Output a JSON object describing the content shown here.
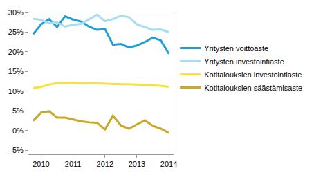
{
  "chart_data": {
    "type": "line",
    "categories": [
      null,
      "2010",
      null,
      null,
      null,
      "2011",
      null,
      null,
      null,
      "2012",
      null,
      null,
      null,
      "2013",
      null,
      null,
      null,
      "2014"
    ],
    "series": [
      {
        "name": "Yritysten voittoaste",
        "color": "#1f9fd8",
        "values": [
          24.5,
          27.0,
          28.3,
          26.3,
          29.0,
          28.2,
          27.7,
          26.4,
          25.6,
          25.8,
          21.8,
          22.0,
          21.1,
          21.6,
          22.5,
          23.6,
          22.9,
          19.5
        ]
      },
      {
        "name": "Yritysten investointiaste",
        "color": "#a6dcf4",
        "values": [
          28.4,
          28.1,
          27.3,
          27.5,
          26.4,
          26.9,
          27.1,
          28.2,
          29.4,
          27.8,
          28.3,
          29.2,
          28.8,
          27.0,
          26.3,
          25.6,
          25.7,
          25.0
        ]
      },
      {
        "name": "Kotitalouksien investointiaste",
        "color": "#f7e13d",
        "values": [
          10.8,
          11.1,
          11.7,
          12.1,
          12.1,
          12.2,
          12.0,
          12.1,
          12.0,
          11.9,
          11.8,
          11.8,
          11.8,
          11.7,
          11.6,
          11.5,
          11.4,
          11.1
        ]
      },
      {
        "name": "Kotitalouksien säästämisaste",
        "color": "#c8a826",
        "values": [
          2.5,
          4.6,
          4.9,
          3.3,
          3.3,
          2.8,
          2.4,
          2.1,
          2.0,
          0.3,
          3.8,
          1.3,
          0.5,
          1.6,
          2.6,
          1.2,
          0.5,
          -0.6
        ]
      }
    ],
    "ylim": [
      -6,
      30
    ],
    "yticks": [
      {
        "value": -5,
        "label": "-5%"
      },
      {
        "value": 0,
        "label": "0%"
      },
      {
        "value": 5,
        "label": "5%"
      },
      {
        "value": 10,
        "label": "10%"
      },
      {
        "value": 15,
        "label": "15%"
      },
      {
        "value": 20,
        "label": "20%"
      },
      {
        "value": 25,
        "label": "25%"
      },
      {
        "value": 30,
        "label": "30%"
      }
    ],
    "grid": false,
    "legend": "right"
  }
}
